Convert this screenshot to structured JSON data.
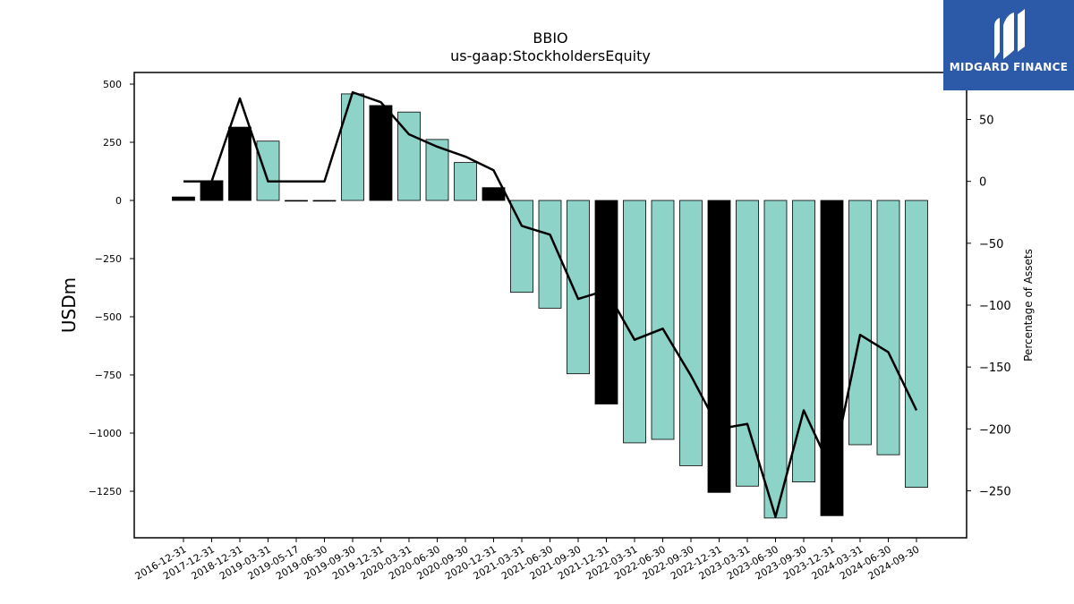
{
  "chart_data": {
    "type": "bar",
    "title": "BBIO",
    "subtitle": "us-gaap:StockholdersEquity",
    "ylabel": "USDm",
    "y2label": "Percentage of Assets",
    "ylim": [
      -1450,
      550
    ],
    "y2lim": [
      -288,
      88
    ],
    "yticks": [
      500,
      250,
      0,
      -250,
      -500,
      -750,
      -1000,
      -1250
    ],
    "yticklabels": [
      "500",
      "250",
      "0",
      "−250",
      "−500",
      "−750",
      "−1000",
      "−1250"
    ],
    "y2ticks": [
      50,
      0,
      -50,
      -100,
      -150,
      -200,
      -250
    ],
    "y2ticklabels": [
      "50",
      "0",
      "−50",
      "−100",
      "−150",
      "−200",
      "−250"
    ],
    "categories": [
      "2016-12-31",
      "2017-12-31",
      "2018-12-31",
      "2019-03-31",
      "2019-05-17",
      "2019-06-30",
      "2019-09-30",
      "2019-12-31",
      "2020-03-31",
      "2020-06-30",
      "2020-09-30",
      "2020-12-31",
      "2021-03-31",
      "2021-06-30",
      "2021-09-30",
      "2021-12-31",
      "2022-03-31",
      "2022-06-30",
      "2022-09-30",
      "2022-12-31",
      "2023-03-31",
      "2023-06-30",
      "2023-09-30",
      "2023-12-31",
      "2024-03-31",
      "2024-06-30",
      "2024-09-30"
    ],
    "values": [
      15,
      85,
      315,
      255,
      0,
      0,
      458,
      408,
      380,
      262,
      163,
      55,
      -395,
      -463,
      -745,
      -875,
      -1042,
      -1027,
      -1140,
      -1255,
      -1228,
      -1365,
      -1210,
      -1355,
      -1050,
      -1093,
      -1233
    ],
    "annual": [
      true,
      true,
      true,
      false,
      false,
      false,
      false,
      true,
      false,
      false,
      false,
      true,
      false,
      false,
      false,
      true,
      false,
      false,
      false,
      true,
      false,
      false,
      false,
      true,
      false,
      false,
      false
    ],
    "pct_of_assets": [
      0,
      0,
      67,
      0,
      0,
      0,
      72,
      64,
      38,
      28,
      20,
      9,
      -36,
      -43,
      -95,
      -88,
      -128,
      -119,
      -157,
      -200,
      -196,
      -271,
      -185,
      -234,
      -124,
      -138,
      -185
    ],
    "colors": {
      "annual_bar": "#000000",
      "quarter_bar": "#8dd3c7",
      "line": "#000000",
      "bar_edge": "#000000"
    },
    "grid": false,
    "legend": "none"
  },
  "watermark": {
    "brand": "MIDGARD FINANCE",
    "background": "#2d5aa8"
  }
}
